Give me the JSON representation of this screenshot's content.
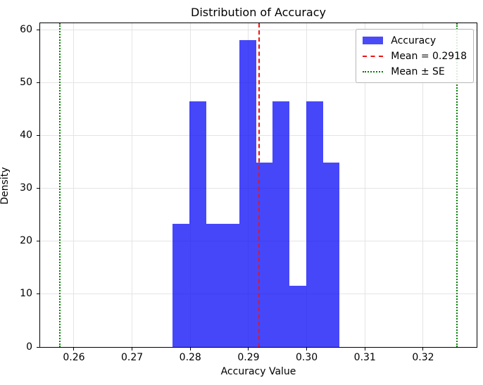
{
  "chart_data": {
    "type": "bar",
    "subtype": "histogram",
    "title": "Distribution of Accuracy",
    "xlabel": "Accuracy Value",
    "ylabel": "Density",
    "xlim": [
      0.2542,
      0.3292
    ],
    "ylim": [
      0,
      61.2
    ],
    "grid": true,
    "xticks": [
      0.26,
      0.27,
      0.28,
      0.29,
      0.3,
      0.31,
      0.32
    ],
    "xtick_labels": [
      "0.26",
      "0.27",
      "0.28",
      "0.29",
      "0.30",
      "0.31",
      "0.32"
    ],
    "yticks": [
      0,
      10,
      20,
      30,
      40,
      50,
      60
    ],
    "ytick_labels": [
      "0",
      "10",
      "20",
      "30",
      "40",
      "50",
      "60"
    ],
    "histogram": {
      "bin_start": 0.27695,
      "bin_width": 0.00287,
      "densities": [
        23.23,
        46.46,
        23.23,
        23.23,
        58.07,
        34.84,
        46.46,
        11.61,
        46.46,
        34.84
      ],
      "series_name": "Accuracy"
    },
    "vlines": [
      {
        "name": "mean-line",
        "value": 0.2918,
        "style": "dashed",
        "color": "#f21111",
        "width": 2
      },
      {
        "name": "mean-minus-se-line",
        "value": 0.2576,
        "style": "dotted",
        "color": "#008000",
        "width": 2
      },
      {
        "name": "mean-plus-se-line",
        "value": 0.3258,
        "style": "dotted",
        "color": "#008000",
        "width": 2
      }
    ],
    "legend": {
      "position": "upper right",
      "entries": [
        {
          "swatch": "patch",
          "color": "#4a4af8",
          "label": "Accuracy"
        },
        {
          "swatch": "dashed-line",
          "color": "#f21111",
          "label": "Mean = 0.2918"
        },
        {
          "swatch": "dotted-line",
          "color": "#008000",
          "label": "Mean ± SE"
        }
      ]
    },
    "colors": {
      "bar_fill": "rgba(13,13,249,0.76)",
      "grid": "#e4e4e4",
      "spine": "#000000",
      "background": "#ffffff"
    }
  }
}
